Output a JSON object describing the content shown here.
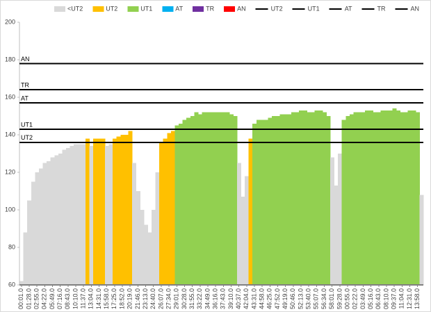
{
  "chart_data": {
    "type": "zone-area",
    "categories": [
      "00:01.0",
      null,
      "01:28.0",
      null,
      "02:55.0",
      null,
      "04:22.0",
      null,
      "05:49.0",
      null,
      "07:16.0",
      null,
      "08:43.0",
      null,
      "10:10.0",
      null,
      "11:37.0",
      null,
      "13:04.0",
      null,
      "14:31.0",
      null,
      "15:58.0",
      null,
      "17:25.0",
      null,
      "18:52.0",
      null,
      "20:19.0",
      null,
      "21:46.0",
      null,
      "23:13.0",
      null,
      "24:40.0",
      null,
      "26:07.0",
      null,
      "27:34.0",
      null,
      "29:01.0",
      null,
      "30:28.0",
      null,
      "31:55.0",
      null,
      "33:22.0",
      null,
      "34:49.0",
      null,
      "36:16.0",
      null,
      "37:43.0",
      null,
      "39:10.0",
      null,
      "40:37.0",
      null,
      "42:04.0",
      null,
      "43:31.0",
      null,
      "44:58.0",
      null,
      "46:25.0",
      null,
      "47:52.0",
      null,
      "49:19.0",
      null,
      "50:46.0",
      null,
      "52:13.0",
      null,
      "53:40.0",
      null,
      "55:07.0",
      null,
      "56:34.0",
      null,
      "58:01.0",
      null,
      "59:28.0",
      null,
      "00:55.0",
      null,
      "02:22.0",
      null,
      "03:49.0",
      null,
      "05:16.0",
      null,
      "06:43.0",
      null,
      "08:10.0",
      null,
      "09:37.0",
      null,
      "11:04.0",
      null,
      "12:31.0",
      null,
      "13:58.0",
      null
    ],
    "values": [
      62,
      88,
      105,
      115,
      120,
      122,
      125,
      126,
      128,
      129,
      130,
      132,
      133,
      134,
      135,
      135,
      135,
      138,
      134,
      138,
      138,
      138,
      134,
      135,
      138,
      139,
      140,
      140,
      142,
      125,
      110,
      100,
      92,
      88,
      100,
      120,
      136,
      138,
      141,
      142,
      145,
      146,
      148,
      149,
      150,
      152,
      151,
      152,
      152,
      152,
      152,
      152,
      152,
      152,
      151,
      150,
      125,
      107,
      118,
      138,
      146,
      148,
      148,
      148,
      149,
      150,
      150,
      151,
      151,
      151,
      152,
      152,
      153,
      153,
      152,
      152,
      153,
      153,
      152,
      150,
      128,
      113,
      130,
      148,
      150,
      151,
      152,
      152,
      152,
      153,
      153,
      152,
      152,
      153,
      153,
      153,
      154,
      153,
      152,
      152,
      153,
      153,
      152,
      108
    ],
    "zones": [
      {
        "name": "<UT2",
        "color": "#d9d9d9"
      },
      {
        "name": "UT2",
        "color": "#ffc000"
      },
      {
        "name": "UT1",
        "color": "#92d050"
      },
      {
        "name": "AT",
        "color": "#00b0f0"
      },
      {
        "name": "TR",
        "color": "#7030a0"
      },
      {
        "name": "AN",
        "color": "#ff0000"
      }
    ],
    "lines": [
      {
        "name": "UT2",
        "value": 136,
        "color": "#000000"
      },
      {
        "name": "UT1",
        "value": 143,
        "color": "#000000"
      },
      {
        "name": "AT",
        "value": 157,
        "color": "#000000"
      },
      {
        "name": "TR",
        "value": 164,
        "color": "#000000"
      },
      {
        "name": "AN",
        "value": 178,
        "color": "#000000"
      }
    ],
    "ylim": [
      60,
      200
    ],
    "yticks": [
      60,
      80,
      100,
      120,
      140,
      160,
      180,
      200
    ],
    "legend": "top"
  }
}
